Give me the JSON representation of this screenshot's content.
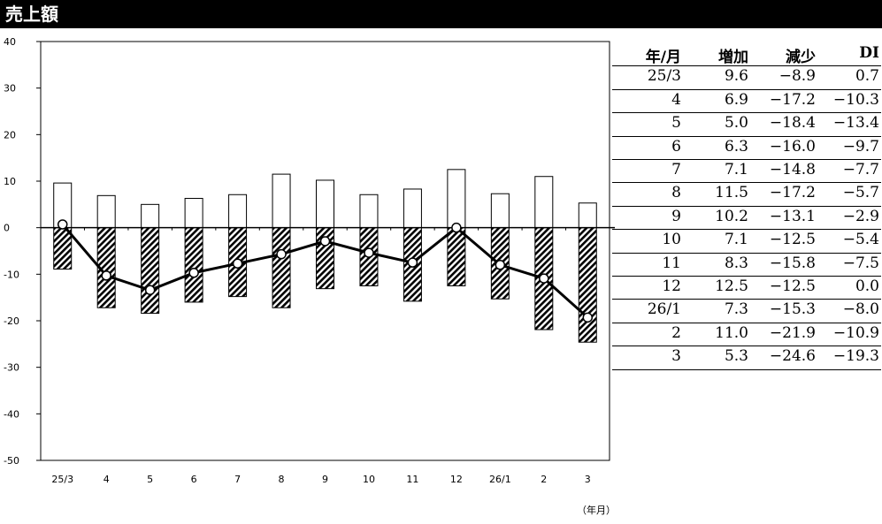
{
  "title": "売上額",
  "x_unit_label": "（年月）",
  "table": {
    "headers": [
      "年/月",
      "増加",
      "減少",
      "DI"
    ],
    "rows": [
      [
        "25/3",
        "9.6",
        "−8.9",
        "0.7"
      ],
      [
        "4",
        "6.9",
        "−17.2",
        "−10.3"
      ],
      [
        "5",
        "5.0",
        "−18.4",
        "−13.4"
      ],
      [
        "6",
        "6.3",
        "−16.0",
        "−9.7"
      ],
      [
        "7",
        "7.1",
        "−14.8",
        "−7.7"
      ],
      [
        "8",
        "11.5",
        "−17.2",
        "−5.7"
      ],
      [
        "9",
        "10.2",
        "−13.1",
        "−2.9"
      ],
      [
        "10",
        "7.1",
        "−12.5",
        "−5.4"
      ],
      [
        "11",
        "8.3",
        "−15.8",
        "−7.5"
      ],
      [
        "12",
        "12.5",
        "−12.5",
        "0.0"
      ],
      [
        "26/1",
        "7.3",
        "−15.3",
        "−8.0"
      ],
      [
        "2",
        "11.0",
        "−21.9",
        "−10.9"
      ],
      [
        "3",
        "5.3",
        "−24.6",
        "−19.3"
      ]
    ]
  },
  "chart_data": {
    "type": "bar",
    "categories": [
      "25/3",
      "4",
      "5",
      "6",
      "7",
      "8",
      "9",
      "10",
      "11",
      "12",
      "26/1",
      "2",
      "3"
    ],
    "series": [
      {
        "name": "増加",
        "values": [
          9.6,
          6.9,
          5.0,
          6.3,
          7.1,
          11.5,
          10.2,
          7.1,
          8.3,
          12.5,
          7.3,
          11.0,
          5.3
        ]
      },
      {
        "name": "減少",
        "values": [
          -8.9,
          -17.2,
          -18.4,
          -16.0,
          -14.8,
          -17.2,
          -13.1,
          -12.5,
          -15.8,
          -12.5,
          -15.3,
          -21.9,
          -24.6
        ]
      },
      {
        "name": "DI",
        "type": "line",
        "values": [
          0.7,
          -10.3,
          -13.4,
          -9.7,
          -7.7,
          -5.7,
          -2.9,
          -5.4,
          -7.5,
          0.0,
          -8.0,
          -10.9,
          -19.3
        ]
      }
    ],
    "ylim": [
      -50,
      40
    ],
    "yticks": [
      40,
      30,
      20,
      10,
      0,
      -10,
      -20,
      -30,
      -40,
      -50
    ],
    "title": "売上額",
    "xlabel": "（年月）",
    "ylabel": "",
    "grid": false,
    "legend": "none",
    "colors": {
      "increase_fill": "#ffffff",
      "decrease_pattern": "#000000",
      "di_line": "#000000"
    }
  }
}
